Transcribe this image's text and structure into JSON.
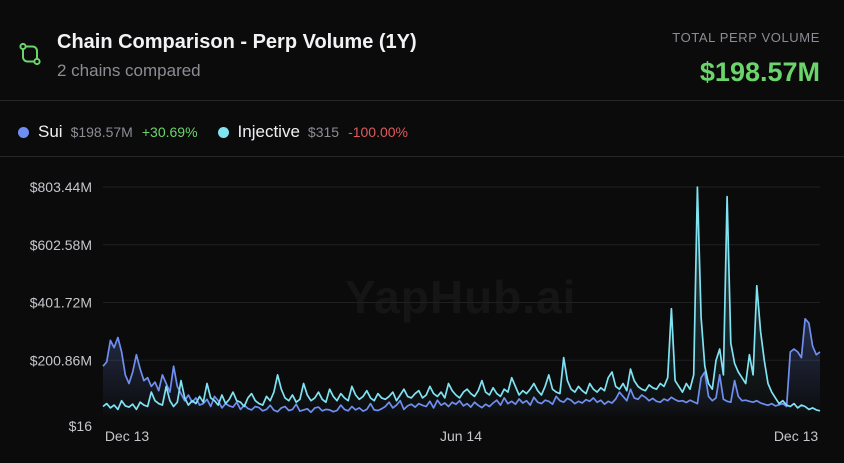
{
  "header": {
    "icon": "git-compare-icon",
    "title": "Chain Comparison - Perp Volume (1Y)",
    "subtitle": "2 chains compared",
    "total_label": "TOTAL PERP VOLUME",
    "total_value": "$198.57M"
  },
  "legend": [
    {
      "name": "Sui",
      "value": "$198.57M",
      "change": "+30.69%",
      "color": "#6f8ff0",
      "change_color": "#6bd56b"
    },
    {
      "name": "Injective",
      "value": "$315",
      "change": "-100.00%",
      "color": "#7fe3f2",
      "change_color": "#e05a5a"
    }
  ],
  "watermark": "YapHub.ai",
  "chart_data": {
    "type": "line",
    "title": "Chain Comparison - Perp Volume (1Y)",
    "x_tick_labels": [
      "Dec 13",
      "Jun 14",
      "Dec 13"
    ],
    "y_tick_labels": [
      "$16",
      "$200.86M",
      "$401.72M",
      "$602.58M",
      "$803.44M"
    ],
    "ylim": [
      0,
      803.44
    ],
    "y_unit": "$M",
    "grid": true,
    "series": [
      {
        "name": "Sui",
        "color": "#6f8ff0",
        "values": [
          180,
          195,
          270,
          245,
          280,
          230,
          150,
          120,
          160,
          220,
          170,
          130,
          140,
          110,
          125,
          95,
          150,
          120,
          90,
          180,
          110,
          85,
          60,
          80,
          55,
          70,
          45,
          50,
          65,
          40,
          75,
          60,
          35,
          50,
          42,
          38,
          55,
          30,
          45,
          33,
          28,
          40,
          36,
          25,
          30,
          44,
          27,
          22,
          35,
          40,
          26,
          30,
          48,
          24,
          28,
          32,
          20,
          35,
          38,
          25,
          30,
          28,
          22,
          26,
          45,
          30,
          25,
          40,
          28,
          35,
          24,
          30,
          50,
          28,
          26,
          32,
          40,
          55,
          35,
          45,
          60,
          30,
          42,
          48,
          38,
          50,
          44,
          40,
          58,
          35,
          62,
          45,
          52,
          40,
          55,
          48,
          60,
          42,
          50,
          38,
          55,
          44,
          36,
          48,
          40,
          52,
          62,
          45,
          70,
          50,
          58,
          48,
          66,
          52,
          60,
          45,
          72,
          55,
          50,
          62,
          58,
          48,
          75,
          60,
          55,
          68,
          62,
          50,
          58,
          52,
          64,
          58,
          70,
          55,
          62,
          48,
          58,
          52,
          66,
          90,
          75,
          60,
          100,
          70,
          65,
          80,
          72,
          60,
          68,
          58,
          55,
          66,
          60,
          72,
          64,
          58,
          60,
          54,
          62,
          56,
          50,
          140,
          160,
          75,
          60,
          70,
          150,
          65,
          58,
          55,
          130,
          75,
          60,
          62,
          58,
          55,
          60,
          52,
          48,
          44,
          50,
          42,
          46,
          50,
          40,
          230,
          240,
          230,
          210,
          345,
          330,
          250,
          220,
          230
        ]
      },
      {
        "name": "Injective",
        "color": "#7fe3f2",
        "values": [
          40,
          50,
          35,
          45,
          30,
          60,
          42,
          38,
          48,
          30,
          55,
          45,
          40,
          90,
          60,
          50,
          45,
          110,
          60,
          40,
          55,
          130,
          70,
          45,
          60,
          50,
          75,
          55,
          120,
          70,
          60,
          45,
          80,
          50,
          65,
          90,
          60,
          55,
          40,
          70,
          85,
          60,
          50,
          45,
          75,
          60,
          90,
          150,
          100,
          70,
          60,
          80,
          55,
          65,
          120,
          80,
          60,
          70,
          90,
          65,
          55,
          100,
          75,
          60,
          85,
          70,
          60,
          110,
          80,
          65,
          75,
          95,
          70,
          60,
          85,
          70,
          65,
          75,
          90,
          60,
          80,
          100,
          75,
          70,
          85,
          95,
          70,
          80,
          110,
          85,
          75,
          90,
          70,
          120,
          95,
          80,
          70,
          90,
          100,
          85,
          75,
          95,
          130,
          90,
          80,
          105,
          85,
          75,
          100,
          90,
          140,
          110,
          80,
          95,
          85,
          100,
          120,
          95,
          80,
          110,
          150,
          100,
          90,
          85,
          210,
          130,
          100,
          90,
          110,
          95,
          85,
          120,
          100,
          90,
          105,
          95,
          140,
          160,
          110,
          100,
          120,
          95,
          170,
          130,
          110,
          100,
          95,
          115,
          105,
          100,
          120,
          110,
          140,
          380,
          130,
          110,
          90,
          120,
          100,
          150,
          803,
          350,
          180,
          120,
          100,
          200,
          240,
          150,
          770,
          260,
          190,
          160,
          140,
          120,
          220,
          150,
          460,
          300,
          200,
          120,
          90,
          70,
          50,
          60,
          45,
          40,
          50,
          35,
          45,
          40,
          30,
          35,
          28,
          25
        ]
      }
    ]
  }
}
